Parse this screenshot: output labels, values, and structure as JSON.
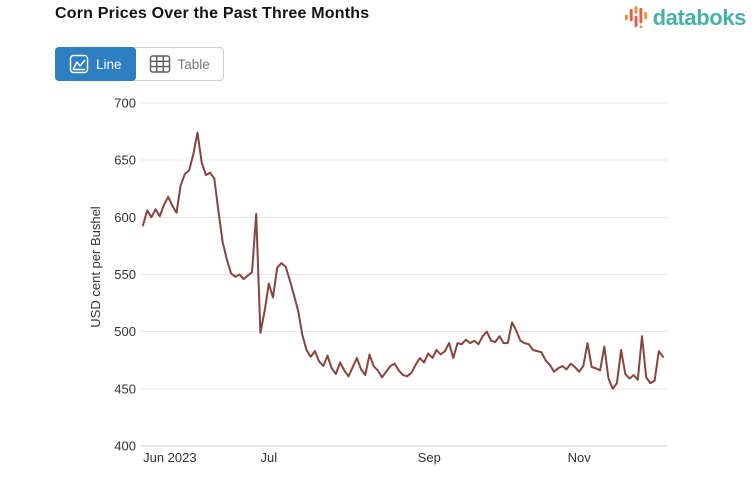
{
  "header": {
    "title": "Corn Prices Over the Past Three Months",
    "logo_text": "databoks"
  },
  "toolbar": {
    "line_label": "Line",
    "table_label": "Table"
  },
  "colors": {
    "accent_blue": "#2d7fc1",
    "line_series": "#87443c",
    "logo_teal": "#46b2a7",
    "logo_orange": "#f2913d",
    "logo_red": "#e25c4a",
    "grid": "#e6e6e6",
    "axis_text": "#333333"
  },
  "chart_data": {
    "type": "line",
    "title": "Corn Prices Over the Past Three Months",
    "ylabel": "USD cent per Bushel",
    "xlabel": "",
    "ylim": [
      400,
      700
    ],
    "yticks": [
      400,
      450,
      500,
      550,
      600,
      650,
      700
    ],
    "grid": "horizontal",
    "legend": "none",
    "x_range_note": "daily prices, Jun 2023 through late Nov 2023",
    "x_ticks": [
      {
        "label": "Jun 2023",
        "pos": 0.004,
        "align": "start"
      },
      {
        "label": "Jul",
        "pos": 0.243,
        "align": "middle"
      },
      {
        "label": "Sep",
        "pos": 0.548,
        "align": "middle"
      },
      {
        "label": "Nov",
        "pos": 0.833,
        "align": "middle"
      }
    ],
    "series": [
      {
        "name": "Corn price",
        "color": "#87443c",
        "values": [
          593,
          606,
          600,
          607,
          601,
          611,
          618,
          610,
          604,
          628,
          638,
          641,
          655,
          674,
          648,
          637,
          639,
          634,
          605,
          578,
          563,
          551,
          548,
          550,
          546,
          549,
          552,
          603,
          499,
          518,
          542,
          530,
          556,
          560,
          557,
          545,
          532,
          518,
          497,
          484,
          478,
          483,
          474,
          470,
          479,
          468,
          463,
          473,
          466,
          461,
          469,
          477,
          467,
          462,
          480,
          470,
          466,
          460,
          465,
          470,
          472,
          466,
          462,
          461,
          464,
          471,
          477,
          473,
          481,
          477,
          484,
          480,
          483,
          490,
          477,
          490,
          489,
          493,
          490,
          492,
          489,
          496,
          500,
          492,
          491,
          496,
          490,
          490,
          508,
          501,
          492,
          490,
          489,
          484,
          483,
          482,
          475,
          471,
          465,
          468,
          470,
          467,
          472,
          469,
          465,
          470,
          490,
          469,
          468,
          466,
          487,
          459,
          450,
          455,
          484,
          463,
          459,
          462,
          458,
          496,
          460,
          455,
          457,
          483,
          478
        ]
      }
    ]
  }
}
